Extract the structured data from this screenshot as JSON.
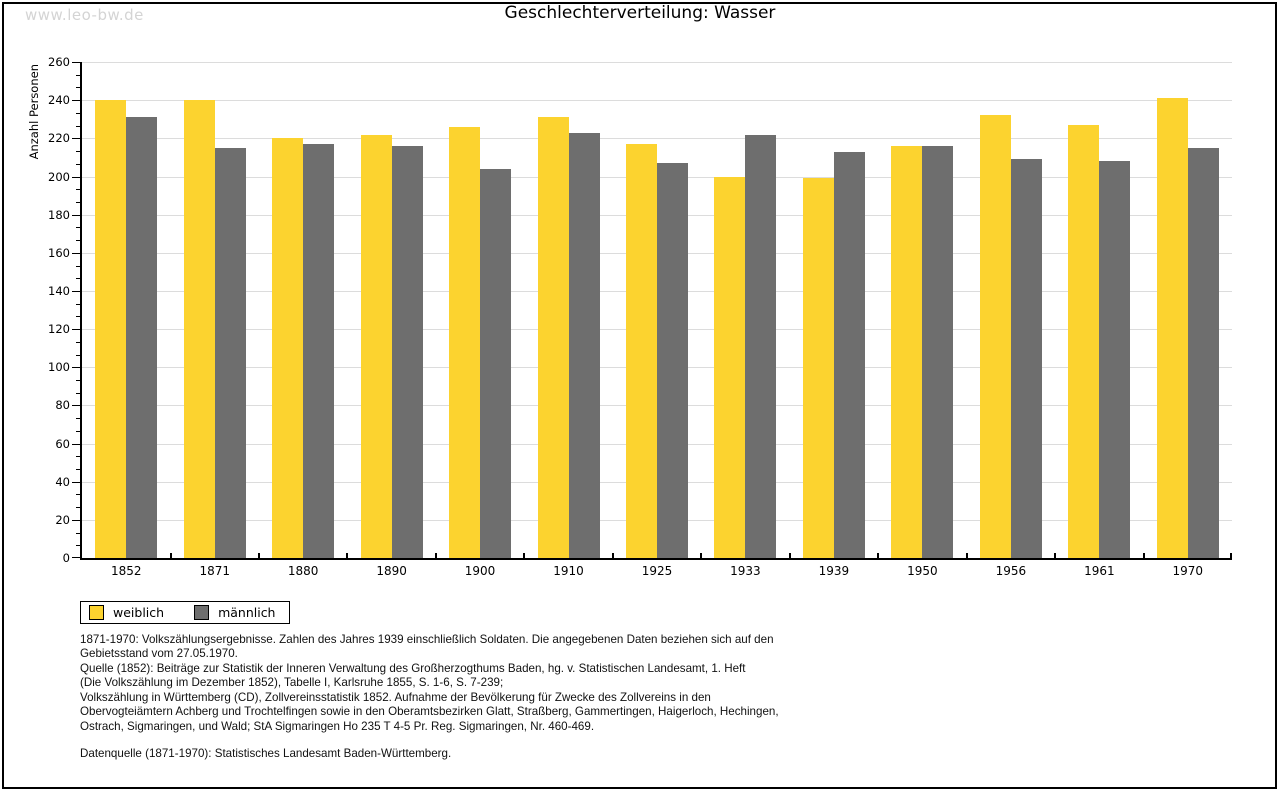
{
  "watermark": "www.leo-bw.de",
  "title": "Geschlechterverteilung: Wasser",
  "chart_data": {
    "type": "bar",
    "title": "Geschlechterverteilung: Wasser",
    "ylabel": "Anzahl Personen",
    "xlabel": "",
    "categories": [
      "1852",
      "1871",
      "1880",
      "1890",
      "1900",
      "1910",
      "1925",
      "1933",
      "1939",
      "1950",
      "1956",
      "1961",
      "1970"
    ],
    "series": [
      {
        "name": "weiblich",
        "color": "#fcd32f",
        "values": [
          240,
          240,
          220,
          222,
          226,
          231,
          217,
          200,
          199,
          216,
          232,
          227,
          241
        ]
      },
      {
        "name": "männlich",
        "color": "#6e6e6e",
        "values": [
          231,
          215,
          217,
          216,
          204,
          223,
          207,
          222,
          213,
          216,
          209,
          208,
          215
        ]
      }
    ],
    "ylim": [
      0,
      260
    ],
    "yticks": [
      0,
      20,
      40,
      60,
      80,
      100,
      120,
      140,
      160,
      180,
      200,
      220,
      240,
      260
    ],
    "minor_ticks_per_interval": 2,
    "grid": true,
    "legend_position": "below-left"
  },
  "legend": {
    "items": [
      {
        "label": "weiblich",
        "color": "#fcd32f"
      },
      {
        "label": "männlich",
        "color": "#6e6e6e"
      }
    ]
  },
  "footnote": {
    "lines": [
      "1871-1970: Volkszählungsergebnisse. Zahlen des Jahres 1939 einschließlich Soldaten. Die angegebenen Daten beziehen sich auf den",
      "Gebietsstand vom 27.05.1970.",
      "Quelle (1852): Beiträge zur Statistik der Inneren Verwaltung des Großherzogthums Baden, hg. v. Statistischen Landesamt, 1. Heft",
      "(Die Volkszählung im Dezember 1852), Tabelle I, Karlsruhe 1855, S. 1-6, S. 7-239;",
      "Volkszählung in Württemberg (CD), Zollvereinsstatistik 1852. Aufnahme der Bevölkerung für Zwecke des Zollvereins in den",
      "Obervogteiämtern Achberg und Trochtelfingen sowie in den Oberamtsbezirken Glatt, Straßberg, Gammertingen, Haigerloch, Hechingen,",
      "Ostrach, Sigmaringen, und Wald; StA Sigmaringen Ho 235 T 4-5 Pr. Reg. Sigmaringen, Nr. 460-469."
    ],
    "datasource": "Datenquelle (1871-1970): Statistisches Landesamt Baden-Württemberg."
  },
  "colors": {
    "grid": "#dcdcdc",
    "axis": "#000000",
    "watermark": "#d4d4d4"
  }
}
